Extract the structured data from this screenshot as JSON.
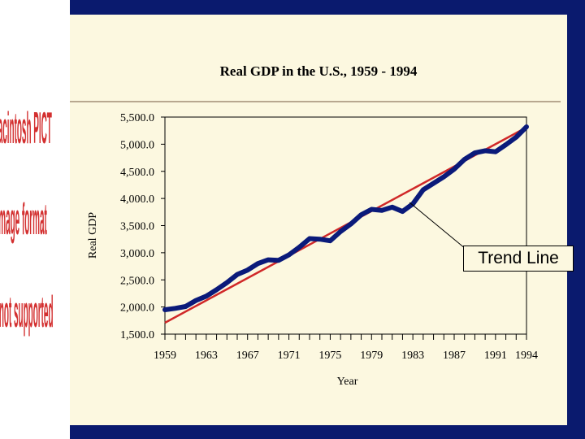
{
  "notice": {
    "text": "Macintosh PICT image format is not supported",
    "lines": [
      "Macintosh PICT",
      "image format",
      "is not supported"
    ],
    "color": "#d33030"
  },
  "colors": {
    "series_line": "#0a1a7a",
    "trend_line": "#d02828",
    "background_outer": "#0a1a6e",
    "slide": "#fcf8e0"
  },
  "chart_data": {
    "type": "line",
    "title": "Real GDP in the U.S., 1959 - 1994",
    "xlabel": "Year",
    "ylabel": "Real GDP",
    "xlim": [
      1959,
      1994
    ],
    "ylim": [
      1500,
      5500
    ],
    "y_ticks": [
      1500,
      2000,
      2500,
      3000,
      3500,
      4000,
      4500,
      5000,
      5500
    ],
    "y_tick_labels": [
      "1,500.0",
      "2,000.0",
      "2,500.0",
      "3,000.0",
      "3,500.0",
      "4,000.0",
      "4,500.0",
      "5,000.0",
      "5,500.0"
    ],
    "x_tick_labels": [
      "1959",
      "1963",
      "1967",
      "1971",
      "1975",
      "1979",
      "1983",
      "1987",
      "1991",
      "1994"
    ],
    "x_tick_values": [
      1959,
      1963,
      1967,
      1971,
      1975,
      1979,
      1983,
      1987,
      1991,
      1994
    ],
    "grid": false,
    "series": [
      {
        "values": [
          [
            1959,
            1950
          ],
          [
            1960,
            1975
          ],
          [
            1961,
            2010
          ],
          [
            1962,
            2120
          ],
          [
            1963,
            2200
          ],
          [
            1964,
            2320
          ],
          [
            1965,
            2450
          ],
          [
            1966,
            2600
          ],
          [
            1967,
            2680
          ],
          [
            1968,
            2800
          ],
          [
            1969,
            2870
          ],
          [
            1970,
            2860
          ],
          [
            1971,
            2960
          ],
          [
            1972,
            3100
          ],
          [
            1973,
            3260
          ],
          [
            1974,
            3250
          ],
          [
            1975,
            3220
          ],
          [
            1976,
            3390
          ],
          [
            1977,
            3530
          ],
          [
            1978,
            3700
          ],
          [
            1979,
            3800
          ],
          [
            1980,
            3780
          ],
          [
            1981,
            3840
          ],
          [
            1982,
            3760
          ],
          [
            1983,
            3900
          ],
          [
            1984,
            4160
          ],
          [
            1985,
            4280
          ],
          [
            1986,
            4400
          ],
          [
            1987,
            4540
          ],
          [
            1988,
            4720
          ],
          [
            1989,
            4840
          ],
          [
            1990,
            4880
          ],
          [
            1991,
            4860
          ],
          [
            1992,
            4990
          ],
          [
            1993,
            5130
          ],
          [
            1994,
            5320
          ]
        ]
      }
    ],
    "trend": {
      "label": "Trend Line",
      "start": [
        1959,
        1710
      ],
      "end": [
        1994,
        5310
      ]
    },
    "annotation": {
      "text": "Trend Line",
      "points_to": [
        1983,
        4000
      ]
    }
  }
}
